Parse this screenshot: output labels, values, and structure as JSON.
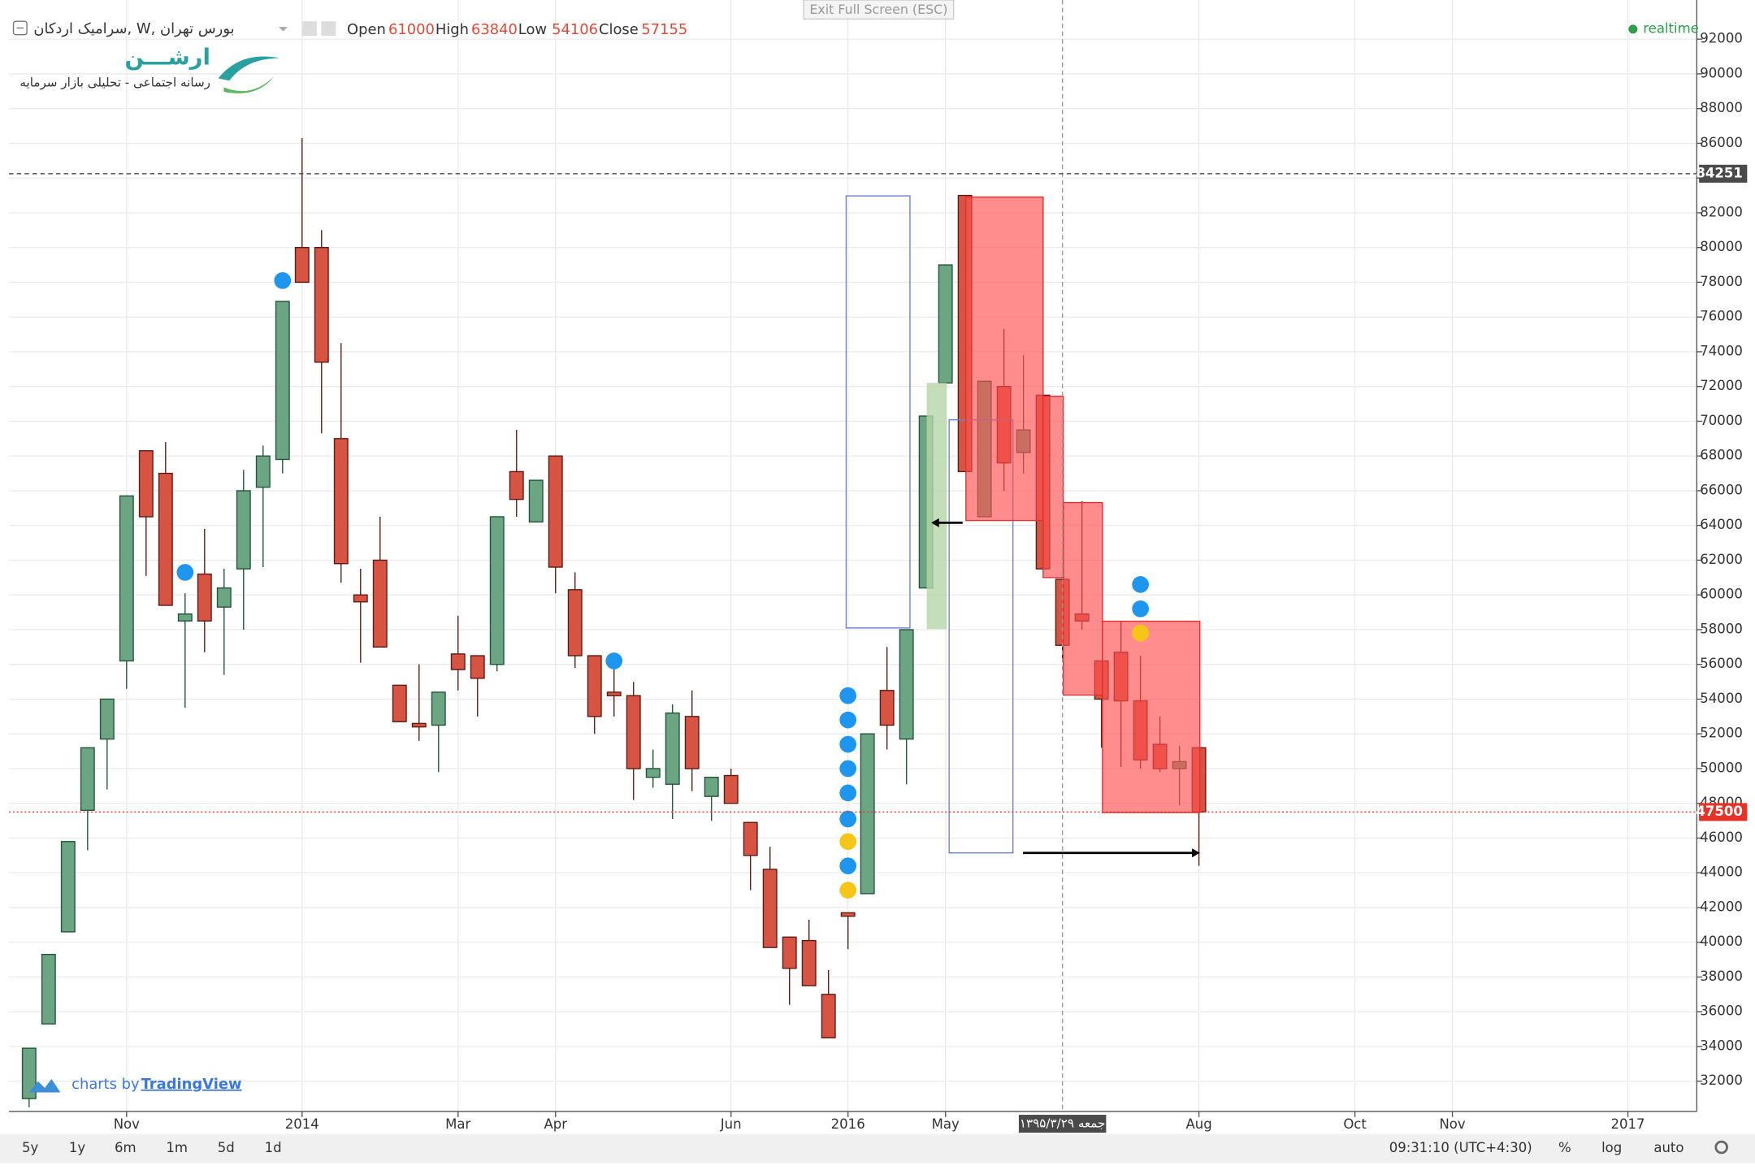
{
  "header": {
    "symbol": "سرامیک اردکان, W, بورس تهران",
    "ohlc": [
      {
        "label": "Open",
        "value": 61000
      },
      {
        "label": "High",
        "value": 63840
      },
      {
        "label": "Low",
        "value": 54106
      },
      {
        "label": "Close",
        "value": 57155
      }
    ],
    "exit_full_screen": "Exit Full Screen (ESC)",
    "realtime": "realtime"
  },
  "logo": {
    "title": "ارشـــن",
    "subtitle": "رسانه اجتماعی - تحلیلی بازار سرمایه"
  },
  "watermark": {
    "prefix": "charts by",
    "brand": "TradingView"
  },
  "chart_data": {
    "type": "candlestick",
    "categories": [
      null,
      null,
      null,
      null,
      null,
      "Nov",
      null,
      null,
      null,
      null,
      null,
      null,
      null,
      null,
      "2014",
      null,
      null,
      null,
      null,
      null,
      null,
      null,
      "Mar",
      null,
      null,
      null,
      null,
      "Apr",
      null,
      null,
      null,
      null,
      null,
      null,
      null,
      null,
      "Jun",
      null,
      null,
      null,
      null,
      null,
      "2016",
      null,
      null,
      null,
      null,
      "May",
      null,
      null,
      null,
      null,
      null,
      null,
      null,
      null,
      null,
      null,
      null,
      null,
      "Aug",
      null,
      null,
      null,
      null,
      null,
      null,
      null,
      "Oct",
      null,
      null,
      null,
      null,
      "Nov",
      null,
      null,
      null,
      null,
      null,
      null,
      null,
      null,
      "2017",
      null,
      null,
      null
    ],
    "open": [
      31000,
      35300,
      40600,
      47600,
      51700,
      56200,
      68300,
      67000,
      58500,
      61200,
      59300,
      61500,
      66200,
      67800,
      80000,
      80000,
      69000,
      60000,
      62000,
      54800,
      52600,
      52500,
      56600,
      56500,
      56000,
      67100,
      64200,
      68000,
      60300,
      56500,
      54400,
      54200,
      49500,
      49100,
      53000,
      48400,
      49600,
      46900,
      44200,
      40300,
      40100,
      37000,
      41700,
      42800,
      54500,
      51700,
      60400,
      72200,
      83000,
      64500,
      72000,
      68200,
      71500,
      60900,
      58900,
      56200,
      56700,
      53900,
      51400,
      50000,
      51200,
      null,
      null,
      null,
      null,
      null,
      null,
      null,
      null,
      null,
      null,
      null,
      null,
      null,
      null,
      null,
      null,
      null,
      null,
      null,
      null,
      null,
      null,
      null,
      null,
      null
    ],
    "high": [
      33900,
      39300,
      45800,
      51200,
      54000,
      65700,
      68300,
      68800,
      60100,
      63800,
      61500,
      67200,
      68600,
      76900,
      86300,
      81000,
      74500,
      61500,
      64500,
      54800,
      56000,
      54400,
      58800,
      56500,
      64500,
      69500,
      66600,
      68000,
      61300,
      56500,
      56500,
      55000,
      51100,
      53700,
      54500,
      49500,
      50000,
      46900,
      45500,
      40300,
      41300,
      38400,
      41700,
      52000,
      57000,
      58000,
      70300,
      79000,
      83000,
      72300,
      75300,
      73800,
      71500,
      60900,
      65400,
      56200,
      58500,
      56500,
      53000,
      51300,
      51200,
      null,
      null,
      null,
      null,
      null,
      null,
      null,
      null,
      null,
      null,
      null,
      null,
      null,
      null,
      null,
      null,
      null,
      null,
      null,
      null,
      null,
      null,
      null,
      null,
      null
    ],
    "low": [
      30500,
      35300,
      40600,
      45300,
      48800,
      54600,
      61100,
      59400,
      53500,
      56700,
      55400,
      58000,
      61600,
      67000,
      78000,
      69300,
      60700,
      56100,
      57000,
      52700,
      51600,
      49800,
      54500,
      53000,
      55600,
      64500,
      64200,
      60100,
      55800,
      52000,
      53000,
      48200,
      48900,
      47100,
      48700,
      47000,
      48000,
      43000,
      39700,
      36400,
      37500,
      34500,
      39600,
      42800,
      51100,
      49100,
      60400,
      72200,
      67100,
      64500,
      66000,
      67000,
      61500,
      56300,
      58000,
      51200,
      50100,
      50000,
      49800,
      47900,
      44400,
      null,
      null,
      null,
      null,
      null,
      null,
      null,
      null,
      null,
      null,
      null,
      null,
      null,
      null,
      null,
      null,
      null,
      null,
      null,
      null,
      null,
      null,
      null,
      null,
      null
    ],
    "close": [
      33900,
      39300,
      45800,
      51200,
      54000,
      65700,
      64500,
      59400,
      58900,
      58500,
      60400,
      66000,
      68000,
      76900,
      78000,
      73400,
      61800,
      59600,
      57000,
      52700,
      52400,
      54400,
      55700,
      55200,
      64500,
      65500,
      66600,
      61600,
      56500,
      53000,
      54200,
      50000,
      50000,
      53200,
      50000,
      49500,
      48000,
      45000,
      39700,
      38500,
      37500,
      34500,
      41500,
      52000,
      52500,
      58000,
      70300,
      79000,
      67100,
      72300,
      67600,
      69500,
      61500,
      57100,
      58500,
      54000,
      53900,
      50500,
      50000,
      50400,
      47500,
      null,
      null,
      null,
      null,
      null,
      null,
      null,
      null,
      null,
      null,
      null,
      null,
      null,
      null,
      null,
      null,
      null,
      null,
      null,
      null,
      null,
      null,
      null,
      null,
      null
    ],
    "up_color": "#6ba583",
    "down_color": "#d75442",
    "ylim": [
      30260,
      93930
    ],
    "yticks": [
      32000,
      34000,
      36000,
      38000,
      40000,
      42000,
      44000,
      46000,
      48000,
      50000,
      52000,
      54000,
      56000,
      58000,
      60000,
      62000,
      64000,
      66000,
      68000,
      70000,
      72000,
      74000,
      76000,
      78000,
      80000,
      82000,
      84000,
      86000,
      88000,
      90000,
      92000
    ],
    "grid": true,
    "markers": [
      {
        "color": "#1e96f0",
        "points": [
          {
            "category": 8,
            "value": 61300
          },
          {
            "category": 13,
            "value": 78100
          },
          {
            "category": 30,
            "value": 56200
          },
          {
            "category": 42,
            "value": 54200
          },
          {
            "category": 42,
            "value": 52800
          },
          {
            "category": 42,
            "value": 51400
          },
          {
            "category": 42,
            "value": 50000
          },
          {
            "category": 42,
            "value": 48600
          },
          {
            "category": 42,
            "value": 47100
          },
          {
            "category": 42,
            "value": 44400
          },
          {
            "category": 57,
            "value": 60600
          },
          {
            "category": 57,
            "value": 59200
          }
        ]
      },
      {
        "color": "#f5c518",
        "points": [
          {
            "category": 42,
            "value": 45800
          },
          {
            "category": 42,
            "value": 43000
          },
          {
            "category": 57,
            "value": 57800
          }
        ]
      }
    ],
    "price_lines": [
      {
        "value": 84251,
        "color": "#4a4a4a",
        "style": "dashed"
      },
      {
        "value": 47500,
        "color": "#e5332a",
        "style": "dotted"
      }
    ],
    "crosshair_label": "۱۳۹۵/۳/۲۹ جمعه"
  },
  "toolbar": {
    "ranges": [
      "5y",
      "1y",
      "6m",
      "1m",
      "5d",
      "1d"
    ],
    "time": "09:31:10 (UTC+4:30)",
    "options": [
      "%",
      "log",
      "auto"
    ]
  }
}
